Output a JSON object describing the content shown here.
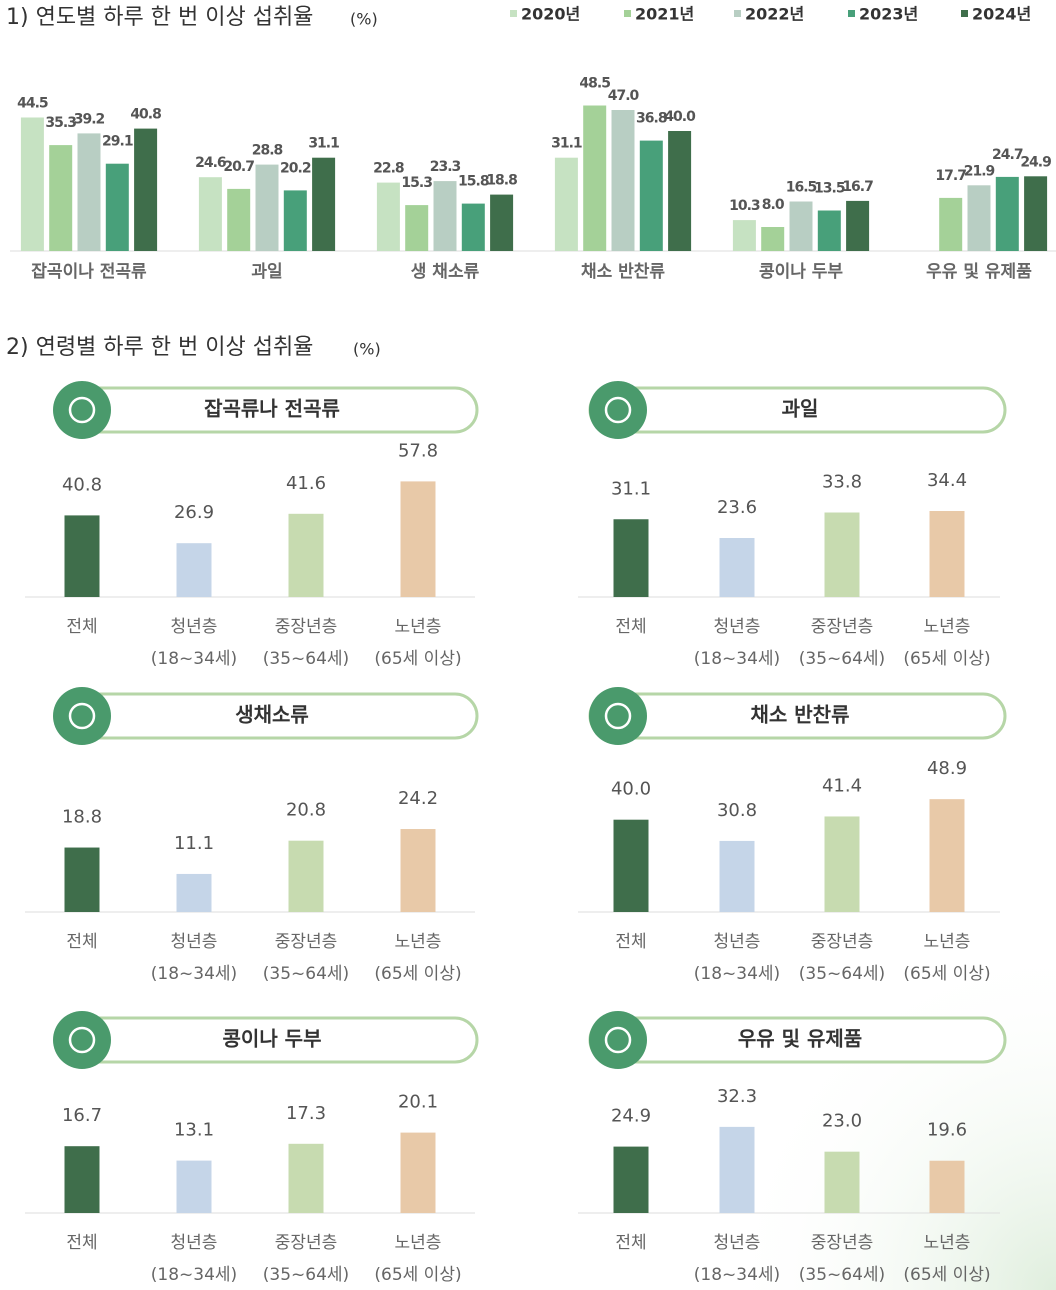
{
  "chart_data": [
    {
      "type": "bar",
      "title": "1) 연도별 하루 한 번 이상 섭취율",
      "unit": "(%)",
      "categories": [
        "잡곡이나 전곡류",
        "과일",
        "생 채소류",
        "채소 반찬류",
        "콩이나 두부",
        "우유 및 유제품"
      ],
      "series": [
        {
          "name": "2020년",
          "color": "#c6e2c2",
          "values": [
            44.5,
            24.6,
            22.8,
            31.1,
            10.3,
            null
          ],
          "value_labels": [
            "44.5",
            "24.6",
            "22.8",
            "31.1",
            "10.3",
            null
          ]
        },
        {
          "name": "2021년",
          "color": "#a4d198",
          "values": [
            35.3,
            20.7,
            15.3,
            48.5,
            8.0,
            17.7
          ],
          "value_labels": [
            "35.3",
            "20.7",
            "15.3",
            "48.5",
            "8.0",
            "17.7"
          ]
        },
        {
          "name": "2022년",
          "color": "#b8cec3",
          "values": [
            39.2,
            28.8,
            23.3,
            47.0,
            16.5,
            21.9
          ],
          "value_labels": [
            "39.2",
            "28.8",
            "23.3",
            "47.0",
            "16.5",
            "21.9"
          ]
        },
        {
          "name": "2023년",
          "color": "#48a07a",
          "values": [
            29.1,
            20.2,
            15.8,
            36.8,
            13.5,
            24.7
          ],
          "value_labels": [
            "29.1",
            "20.2",
            "15.8",
            "36.8",
            "13.5",
            "24.7"
          ]
        },
        {
          "name": "2024년",
          "color": "#3f6e4b",
          "values": [
            40.8,
            31.1,
            18.8,
            40.0,
            16.7,
            24.9
          ],
          "value_labels": [
            "40.8",
            "31.1",
            "18.8",
            "40.0",
            "16.7",
            "24.9"
          ]
        }
      ],
      "ylim": [
        0,
        50
      ]
    },
    {
      "type": "bar",
      "title": "잡곡류나 전곡류",
      "categories": [
        "전체",
        "청년층",
        "중장년층",
        "노년층"
      ],
      "category_sublabels": [
        null,
        "(18~34세)",
        "(35~64세)",
        "(65세 이상)"
      ],
      "colors": [
        "#3f6e4b",
        "#c5d5e8",
        "#c7dbb0",
        "#e8c9a8"
      ],
      "values": [
        40.8,
        26.9,
        41.6,
        57.8
      ],
      "ylim": [
        0,
        60
      ]
    },
    {
      "type": "bar",
      "title": "과일",
      "categories": [
        "전체",
        "청년층",
        "중장년층",
        "노년층"
      ],
      "category_sublabels": [
        null,
        "(18~34세)",
        "(35~64세)",
        "(65세 이상)"
      ],
      "colors": [
        "#3f6e4b",
        "#c5d5e8",
        "#c7dbb0",
        "#e8c9a8"
      ],
      "values": [
        31.1,
        23.6,
        33.8,
        34.4
      ],
      "ylim": [
        0,
        48
      ]
    },
    {
      "type": "bar",
      "title": "생채소류",
      "categories": [
        "전체",
        "청년층",
        "중장년층",
        "노년층"
      ],
      "category_sublabels": [
        null,
        "(18~34세)",
        "(35~64세)",
        "(65세 이상)"
      ],
      "colors": [
        "#3f6e4b",
        "#c5d5e8",
        "#c7dbb0",
        "#e8c9a8"
      ],
      "values": [
        18.8,
        11.1,
        20.8,
        24.2
      ],
      "ylim": [
        0,
        35
      ]
    },
    {
      "type": "bar",
      "title": "채소 반찬류",
      "categories": [
        "전체",
        "청년층",
        "중장년층",
        "노년층"
      ],
      "category_sublabels": [
        null,
        "(18~34세)",
        "(35~64세)",
        "(65세 이상)"
      ],
      "colors": [
        "#3f6e4b",
        "#c5d5e8",
        "#c7dbb0",
        "#e8c9a8"
      ],
      "values": [
        40.0,
        30.8,
        41.4,
        48.9
      ],
      "value_labels": [
        "40.0",
        "30.8",
        "41.4",
        "48.9"
      ],
      "ylim": [
        0,
        52
      ]
    },
    {
      "type": "bar",
      "title": "콩이나 두부",
      "categories": [
        "전체",
        "청년층",
        "중장년층",
        "노년층"
      ],
      "category_sublabels": [
        null,
        "(18~34세)",
        "(35~64세)",
        "(65세 이상)"
      ],
      "colors": [
        "#3f6e4b",
        "#c5d5e8",
        "#c7dbb0",
        "#e8c9a8"
      ],
      "values": [
        16.7,
        13.1,
        17.3,
        20.1
      ],
      "ylim": [
        0,
        30
      ]
    },
    {
      "type": "bar",
      "title": "우유 및 유제품",
      "categories": [
        "전체",
        "청년층",
        "중장년층",
        "노년층"
      ],
      "category_sublabels": [
        null,
        "(18~34세)",
        "(35~64세)",
        "(65세 이상)"
      ],
      "colors": [
        "#3f6e4b",
        "#c5d5e8",
        "#c7dbb0",
        "#e8c9a8"
      ],
      "values": [
        24.9,
        32.3,
        23.0,
        19.6
      ],
      "value_labels": [
        "24.9",
        "32.3",
        "23.0",
        "19.6"
      ],
      "ylim": [
        0,
        45
      ]
    }
  ],
  "section_2": {
    "heading": "2) 연령별 하루 한 번 이상 섭취율",
    "unit": "(%)"
  }
}
